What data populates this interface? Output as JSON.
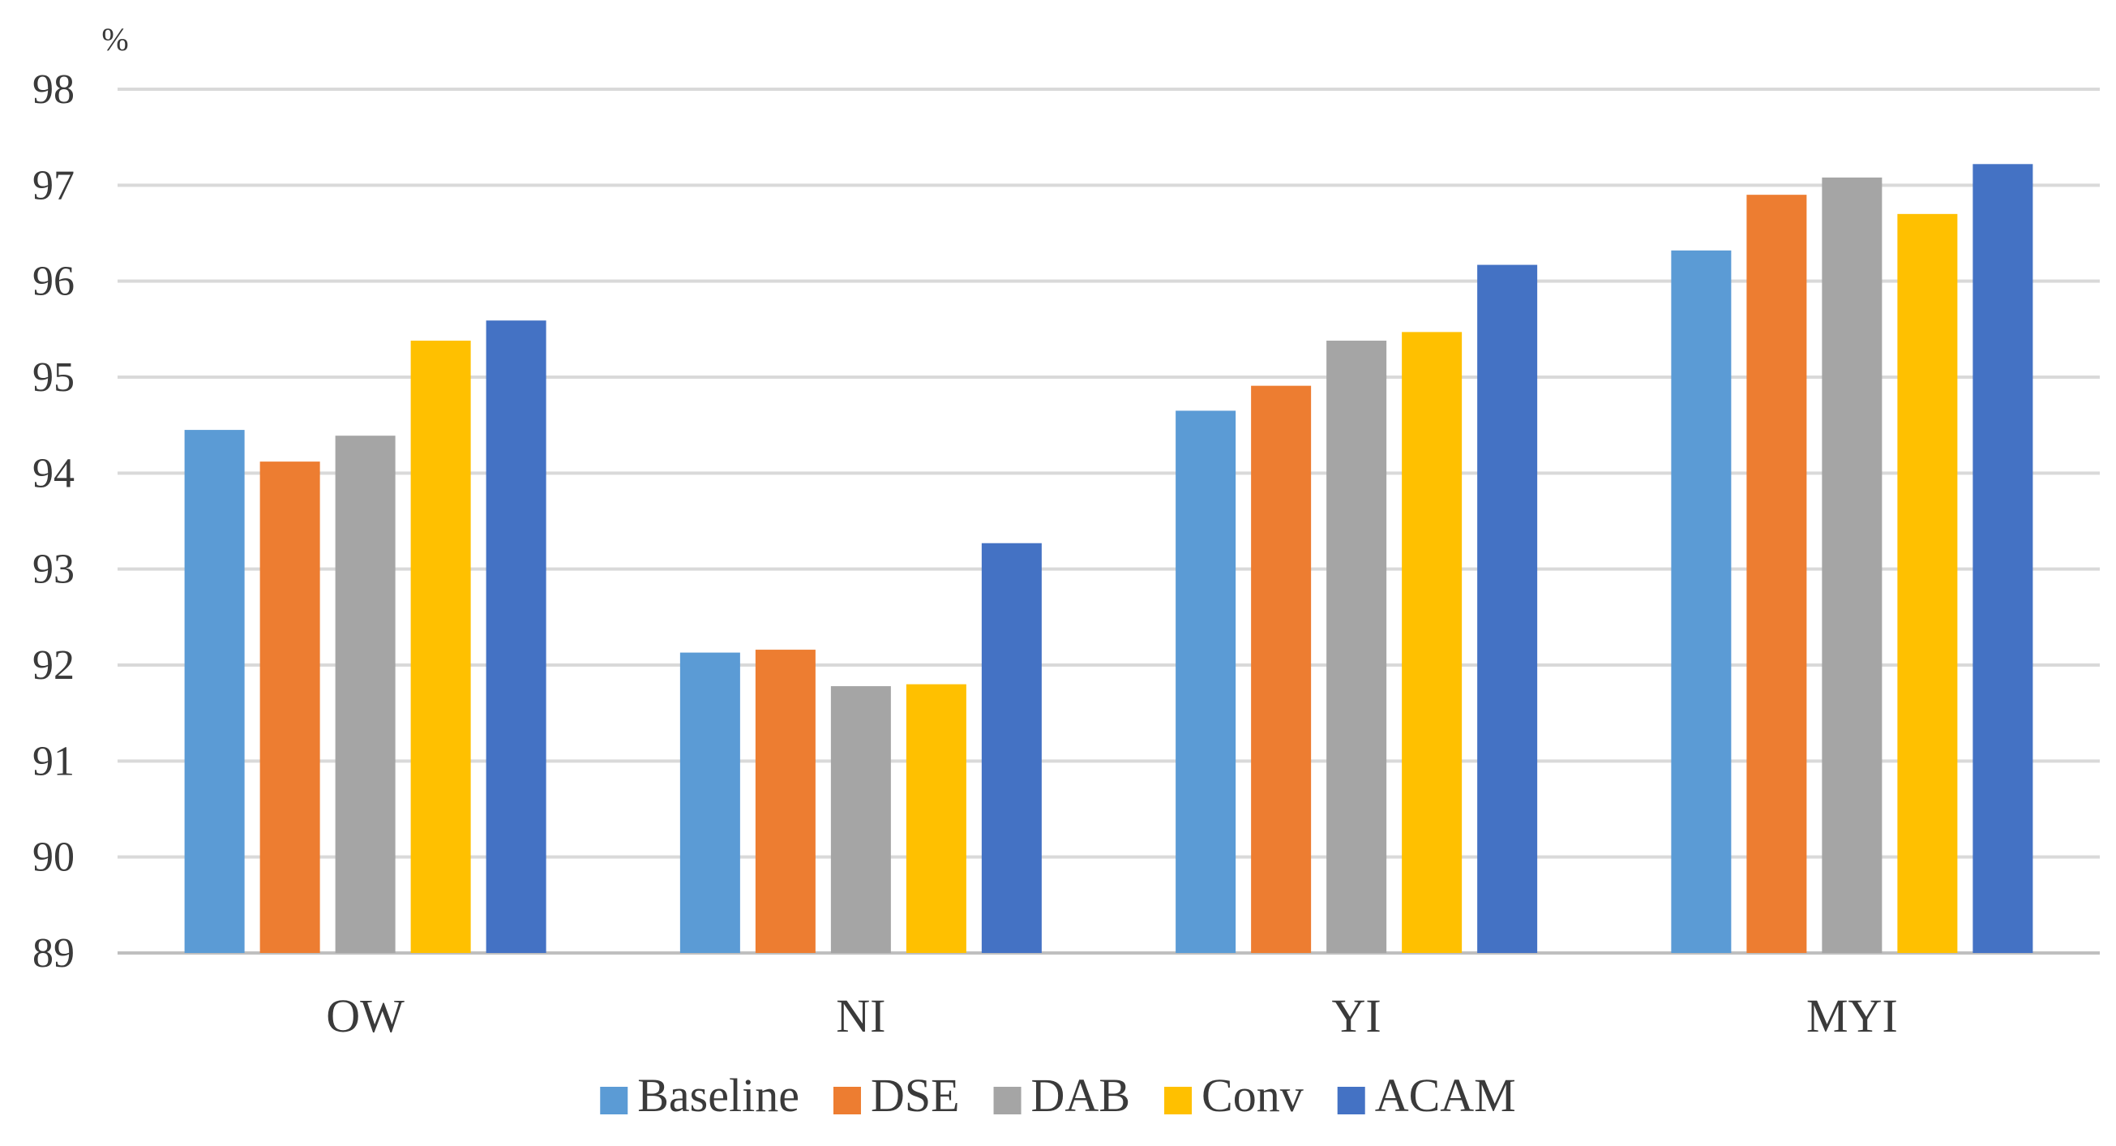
{
  "chart_data": {
    "type": "bar",
    "title": "",
    "xlabel": "",
    "ylabel": "%",
    "ylim": [
      89,
      98
    ],
    "yticks": [
      89,
      90,
      91,
      92,
      93,
      94,
      95,
      96,
      97,
      98
    ],
    "grid": true,
    "legend_position": "bottom",
    "categories": [
      "OW",
      "NI",
      "YI",
      "MYI"
    ],
    "series": [
      {
        "name": "Baseline",
        "color": "#5B9BD5",
        "values": [
          94.45,
          92.13,
          94.65,
          96.32
        ]
      },
      {
        "name": "DSE",
        "color": "#ED7D31",
        "values": [
          94.12,
          92.16,
          94.91,
          96.9
        ]
      },
      {
        "name": "DAB",
        "color": "#A5A5A5",
        "values": [
          94.39,
          91.78,
          95.38,
          97.08
        ]
      },
      {
        "name": "Conv",
        "color": "#FFC000",
        "values": [
          95.38,
          91.8,
          95.47,
          96.7
        ]
      },
      {
        "name": "ACAM",
        "color": "#4472C4",
        "values": [
          95.59,
          93.27,
          96.17,
          97.22
        ]
      }
    ]
  },
  "colors": {
    "grid": "#D9D9D9",
    "axis": "#BFBFBF",
    "text": "#3A3A3A"
  }
}
